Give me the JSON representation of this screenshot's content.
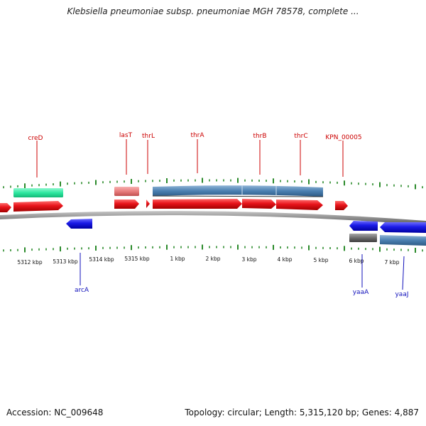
{
  "title": "Klebsiella pneumoniae subsp. pneumoniae MGH 78578, complete ...",
  "footer": {
    "accession_label": "Accession: NC_009648",
    "topology_label": "Topology: circular; Length: 5,315,120 bp; Genes: 4,887"
  },
  "colors": {
    "forward_gene": "#e8141b",
    "reverse_gene": "#1a1ae6",
    "cds_feature": "#4a7fb0",
    "misc_feature": "#2ee8a0",
    "trna_feature": "#e87d7d",
    "gray_feature": "#6d6d6d",
    "label_forward": "#cc0000",
    "label_reverse": "#1111bb",
    "tick_color": "#2a8a2a",
    "backbone": "#8e8e8e"
  },
  "axis_labels": [
    "5312 kbp",
    "5313 kbp",
    "5314 kbp",
    "5315 kbp",
    "1 kbp",
    "2 kbp",
    "3 kbp",
    "4 kbp",
    "5 kbp",
    "6 kbp",
    "7 kbp"
  ],
  "top_gene_labels": [
    "creD",
    "lasT",
    "thrL",
    "thrA",
    "thrB",
    "thrC",
    "KPN_00005"
  ],
  "bottom_gene_labels": [
    "arcA",
    "yaaA",
    "yaaJ"
  ]
}
